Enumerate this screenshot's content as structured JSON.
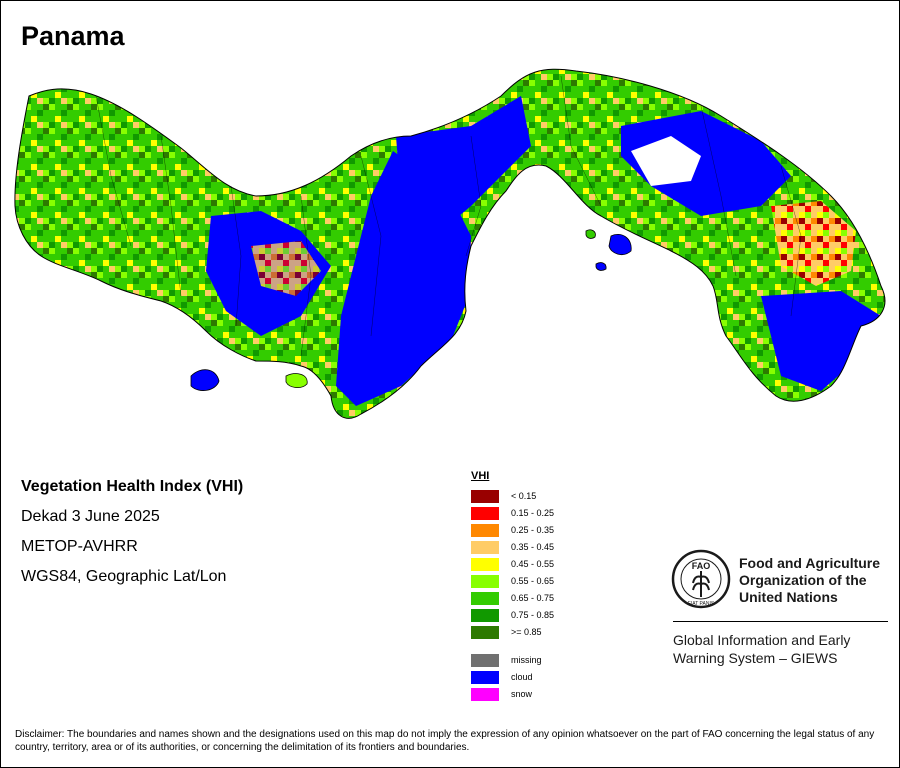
{
  "map_title": "Panama",
  "info": {
    "index_name": "Vegetation Health Index (VHI)",
    "period": "Dekad 3 June 2025",
    "sensor": "METOP-AVHRR",
    "projection": "WGS84, Geographic Lat/Lon"
  },
  "legend": {
    "title": "VHI",
    "classes": [
      {
        "label": "< 0.15",
        "color": "#990000"
      },
      {
        "label": "0.15 - 0.25",
        "color": "#ff0000"
      },
      {
        "label": "0.25 - 0.35",
        "color": "#ff8800"
      },
      {
        "label": "0.35 - 0.45",
        "color": "#ffcc66"
      },
      {
        "label": "0.45 - 0.55",
        "color": "#ffff00"
      },
      {
        "label": "0.55 - 0.65",
        "color": "#88ff00"
      },
      {
        "label": "0.65 - 0.75",
        "color": "#33cc00"
      },
      {
        "label": "0.75 - 0.85",
        "color": "#119900"
      },
      {
        "label": ">= 0.85",
        "color": "#2d7a00"
      }
    ],
    "special": [
      {
        "label": "missing",
        "color": "#707070"
      },
      {
        "label": "cloud",
        "color": "#0000ff"
      },
      {
        "label": "snow",
        "color": "#ff00ff"
      }
    ]
  },
  "organization": {
    "logo_text": "FAO",
    "logo_motto": "FIAT PANIS",
    "name_line1": "Food and Agriculture",
    "name_line2": "Organization of the",
    "name_line3": "United Nations",
    "system_line1": "Global Information and Early",
    "system_line2": "Warning System – GIEWS"
  },
  "disclaimer": "Disclaimer: The boundaries and names shown and the designations used on this map do not imply the expression of any opinion whatsoever on the part of FAO concerning the legal status of any country, territory, area or of its authorities, or concerning the delimitation of its frontiers and boundaries."
}
